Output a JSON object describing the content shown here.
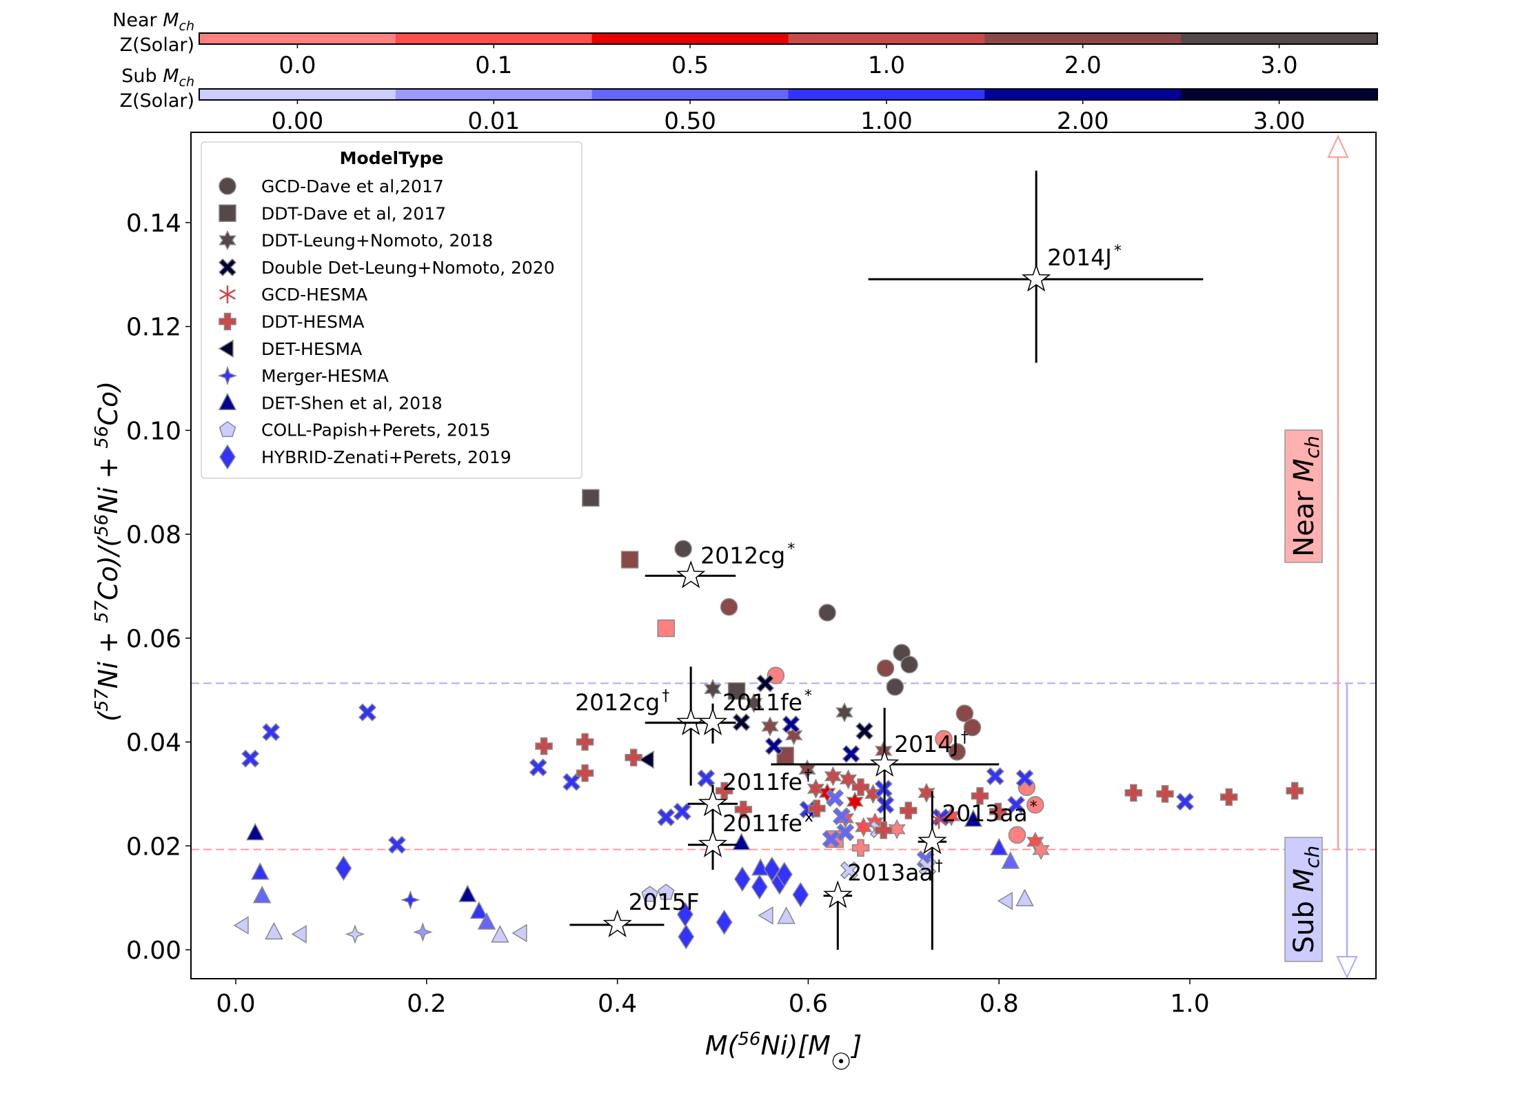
{
  "chart_data": {
    "type": "scatter",
    "title": "",
    "xlabel": "M(56Ni)[M☉]",
    "ylabel": "(57Ni + 57Co)/(56Ni + 56Co)",
    "xlim": [
      -0.04,
      1.2
    ],
    "ylim": [
      -0.0065,
      0.157
    ],
    "x_ticks": [
      "0.0",
      "0.2",
      "0.4",
      "0.6",
      "0.8",
      "1.0"
    ],
    "x_tick_values": [
      0.0,
      0.2,
      0.4,
      0.6,
      0.8,
      1.0
    ],
    "y_ticks": [
      "0.00",
      "0.02",
      "0.04",
      "0.06",
      "0.08",
      "0.10",
      "0.12",
      "0.14"
    ],
    "y_tick_values": [
      0.0,
      0.02,
      0.04,
      0.06,
      0.08,
      0.1,
      0.12,
      0.14
    ],
    "grid": false,
    "legend": {
      "title": "ModelType",
      "placement": "top-left",
      "entries": [
        {
          "label": "GCD-Dave et al,2017",
          "marker": "circle",
          "color": "#554848"
        },
        {
          "label": "DDT-Dave et al, 2017",
          "marker": "square",
          "color": "#554848"
        },
        {
          "label": "DDT-Leung+Nomoto, 2018",
          "marker": "star6",
          "color": "#554848"
        },
        {
          "label": "Double Det-Leung+Nomoto, 2020",
          "marker": "x",
          "color": "#000033"
        },
        {
          "label": "GCD-HESMA",
          "marker": "asterisk",
          "color": "#c84a4a"
        },
        {
          "label": "DDT-HESMA",
          "marker": "plus",
          "color": "#c84a4a"
        },
        {
          "label": "DET-HESMA",
          "marker": "tri-left",
          "color": "#000033"
        },
        {
          "label": "Merger-HESMA",
          "marker": "star4",
          "color": "#3333ff"
        },
        {
          "label": "DET-Shen et al, 2018",
          "marker": "tri-up",
          "color": "#000099"
        },
        {
          "label": "COLL-Papish+Perets, 2015",
          "marker": "pentagon",
          "color": "#ccccff"
        },
        {
          "label": "HYBRID-Zenati+Perets, 2019",
          "marker": "diamond",
          "color": "#3333ff"
        }
      ]
    },
    "colorbars": [
      {
        "label_line1": "Near M",
        "label_sub": "ch",
        "label_line2": "Z(Solar)",
        "ticks": [
          "0.0",
          "0.1",
          "0.5",
          "1.0",
          "2.0",
          "3.0"
        ],
        "colors": [
          "#ff8080",
          "#ff4c4c",
          "#e60000",
          "#c84a4a",
          "#8b4848",
          "#554848"
        ]
      },
      {
        "label_line1": "Sub M",
        "label_sub": "ch",
        "label_line2": "Z(Solar)",
        "ticks": [
          "0.00",
          "0.01",
          "0.50",
          "1.00",
          "2.00",
          "3.00"
        ],
        "colors": [
          "#ccccff",
          "#9999ff",
          "#6666ff",
          "#3333ff",
          "#000099",
          "#000033"
        ]
      }
    ],
    "thresholds": [
      {
        "name": "sub-mch-upper",
        "y": 0.0513,
        "color": "#aaaaff",
        "style": "dashed"
      },
      {
        "name": "near-mch-lower",
        "y": 0.0193,
        "color": "#ff9999",
        "style": "dashed"
      }
    ],
    "regions": [
      {
        "label": "Near M",
        "sub": "ch",
        "color": "#ffb0b0",
        "arrow": "up",
        "arrow_color": "#ff9999",
        "from_y": 0.0193
      },
      {
        "label": "Sub M",
        "sub": "ch",
        "color": "#ccccff",
        "arrow": "down",
        "arrow_color": "#aaaaff",
        "from_y": 0.0513
      }
    ],
    "series": [
      {
        "name": "GCD-Dave et al,2017",
        "marker": "circle",
        "points": [
          {
            "x": 0.469,
            "y": 0.0772,
            "c": "#554848"
          },
          {
            "x": 0.517,
            "y": 0.066,
            "c": "#8b4848"
          },
          {
            "x": 0.62,
            "y": 0.0649,
            "c": "#554848"
          },
          {
            "x": 0.566,
            "y": 0.0528,
            "c": "#ff8080"
          },
          {
            "x": 0.681,
            "y": 0.0542,
            "c": "#8b4848"
          },
          {
            "x": 0.698,
            "y": 0.0572,
            "c": "#554848"
          },
          {
            "x": 0.706,
            "y": 0.0549,
            "c": "#554848"
          },
          {
            "x": 0.691,
            "y": 0.0506,
            "c": "#554848"
          },
          {
            "x": 0.742,
            "y": 0.0406,
            "c": "#ff8080"
          },
          {
            "x": 0.764,
            "y": 0.0455,
            "c": "#8b4848"
          },
          {
            "x": 0.772,
            "y": 0.0428,
            "c": "#8b4848"
          },
          {
            "x": 0.756,
            "y": 0.0381,
            "c": "#8b4848"
          },
          {
            "x": 0.829,
            "y": 0.0313,
            "c": "#ff8080"
          },
          {
            "x": 0.838,
            "y": 0.0279,
            "c": "#ff8080"
          },
          {
            "x": 0.819,
            "y": 0.0221,
            "c": "#ff8080"
          }
        ]
      },
      {
        "name": "DDT-Dave et al, 2017",
        "marker": "square",
        "points": [
          {
            "x": 0.372,
            "y": 0.087,
            "c": "#554848"
          },
          {
            "x": 0.413,
            "y": 0.0751,
            "c": "#8b4848"
          },
          {
            "x": 0.451,
            "y": 0.0619,
            "c": "#ff8080"
          },
          {
            "x": 0.525,
            "y": 0.0498,
            "c": "#554848"
          },
          {
            "x": 0.576,
            "y": 0.0374,
            "c": "#8b4848"
          },
          {
            "x": 0.628,
            "y": 0.0213,
            "c": "#ff8080"
          }
        ]
      },
      {
        "name": "DDT-Leung+Nomoto, 2018",
        "marker": "star6",
        "points": [
          {
            "x": 0.5,
            "y": 0.0502,
            "c": "#554848"
          },
          {
            "x": 0.56,
            "y": 0.043,
            "c": "#8b4848"
          },
          {
            "x": 0.585,
            "y": 0.0413,
            "c": "#8b4848"
          },
          {
            "x": 0.543,
            "y": 0.0475,
            "c": "#554848"
          },
          {
            "x": 0.638,
            "y": 0.0457,
            "c": "#554848"
          },
          {
            "x": 0.599,
            "y": 0.0347,
            "c": "#8b4848"
          },
          {
            "x": 0.679,
            "y": 0.0383,
            "c": "#8b4848"
          },
          {
            "x": 0.608,
            "y": 0.031,
            "c": "#c84a4a"
          },
          {
            "x": 0.642,
            "y": 0.0328,
            "c": "#c84a4a"
          },
          {
            "x": 0.668,
            "y": 0.03,
            "c": "#c84a4a"
          },
          {
            "x": 0.724,
            "y": 0.0302,
            "c": "#c84a4a"
          },
          {
            "x": 0.626,
            "y": 0.0334,
            "c": "#c84a4a"
          },
          {
            "x": 0.62,
            "y": 0.0302,
            "c": "#e60000"
          },
          {
            "x": 0.649,
            "y": 0.0285,
            "c": "#e60000"
          },
          {
            "x": 0.639,
            "y": 0.0253,
            "c": "#ff4c4c"
          },
          {
            "x": 0.658,
            "y": 0.0236,
            "c": "#ff4c4c"
          },
          {
            "x": 0.67,
            "y": 0.0245,
            "c": "#ff4c4c"
          },
          {
            "x": 0.693,
            "y": 0.0232,
            "c": "#ff8080"
          },
          {
            "x": 0.75,
            "y": 0.0257,
            "c": "#ff4c4c"
          },
          {
            "x": 0.838,
            "y": 0.0208,
            "c": "#ff4c4c"
          },
          {
            "x": 0.844,
            "y": 0.0192,
            "c": "#ff8080"
          }
        ]
      },
      {
        "name": "Double Det-Leung+Nomoto, 2020",
        "marker": "x",
        "points": [
          {
            "x": 0.555,
            "y": 0.0513,
            "c": "#000033"
          },
          {
            "x": 0.53,
            "y": 0.0438,
            "c": "#000033"
          },
          {
            "x": 0.582,
            "y": 0.0434,
            "c": "#000099"
          },
          {
            "x": 0.564,
            "y": 0.0392,
            "c": "#000099"
          },
          {
            "x": 0.659,
            "y": 0.0421,
            "c": "#000033"
          },
          {
            "x": 0.645,
            "y": 0.0377,
            "c": "#000099"
          },
          {
            "x": 0.0153,
            "y": 0.0368,
            "c": "#3333ff"
          },
          {
            "x": 0.037,
            "y": 0.0419,
            "c": "#3333ff"
          },
          {
            "x": 0.138,
            "y": 0.0457,
            "c": "#3333ff"
          },
          {
            "x": 0.317,
            "y": 0.0351,
            "c": "#3333ff"
          },
          {
            "x": 0.352,
            "y": 0.0323,
            "c": "#3333ff"
          },
          {
            "x": 0.169,
            "y": 0.0202,
            "c": "#3333ff"
          },
          {
            "x": 0.451,
            "y": 0.0255,
            "c": "#3333ff"
          },
          {
            "x": 0.468,
            "y": 0.0266,
            "c": "#3333ff"
          },
          {
            "x": 0.493,
            "y": 0.033,
            "c": "#3333ff"
          },
          {
            "x": 0.6,
            "y": 0.027,
            "c": "#3333ff"
          },
          {
            "x": 0.679,
            "y": 0.031,
            "c": "#3333ff"
          },
          {
            "x": 0.681,
            "y": 0.0279,
            "c": "#3333ff"
          },
          {
            "x": 0.739,
            "y": 0.0255,
            "c": "#3333ff"
          },
          {
            "x": 0.796,
            "y": 0.0334,
            "c": "#3333ff"
          },
          {
            "x": 0.827,
            "y": 0.033,
            "c": "#3333ff"
          },
          {
            "x": 0.818,
            "y": 0.0279,
            "c": "#3333ff"
          },
          {
            "x": 0.995,
            "y": 0.0285,
            "c": "#3333ff"
          },
          {
            "x": 0.635,
            "y": 0.0257,
            "c": "#6666ff"
          },
          {
            "x": 0.628,
            "y": 0.0292,
            "c": "#6666ff"
          },
          {
            "x": 0.639,
            "y": 0.0226,
            "c": "#6666ff"
          },
          {
            "x": 0.624,
            "y": 0.0213,
            "c": "#6666ff"
          },
          {
            "x": 0.723,
            "y": 0.0174,
            "c": "#6666ff"
          },
          {
            "x": 0.643,
            "y": 0.0153,
            "c": "#ccccff"
          },
          {
            "x": 0.674,
            "y": 0.0232,
            "c": "#ccccff"
          },
          {
            "x": 0.725,
            "y": 0.016,
            "c": "#ccccff"
          }
        ]
      },
      {
        "name": "GCD-HESMA",
        "marker": "asterisk",
        "points": [
          {
            "x": 0.737,
            "y": 0.025,
            "c": "#c84a4a"
          }
        ]
      },
      {
        "name": "DDT-HESMA",
        "marker": "plus",
        "points": [
          {
            "x": 0.323,
            "y": 0.0392,
            "c": "#c84a4a"
          },
          {
            "x": 0.366,
            "y": 0.04,
            "c": "#c84a4a"
          },
          {
            "x": 0.366,
            "y": 0.034,
            "c": "#c84a4a"
          },
          {
            "x": 0.417,
            "y": 0.037,
            "c": "#c84a4a"
          },
          {
            "x": 0.532,
            "y": 0.027,
            "c": "#c84a4a"
          },
          {
            "x": 0.512,
            "y": 0.0306,
            "c": "#c84a4a"
          },
          {
            "x": 0.655,
            "y": 0.0313,
            "c": "#c84a4a"
          },
          {
            "x": 0.705,
            "y": 0.0268,
            "c": "#c84a4a"
          },
          {
            "x": 0.679,
            "y": 0.023,
            "c": "#c84a4a"
          },
          {
            "x": 0.78,
            "y": 0.0296,
            "c": "#c84a4a"
          },
          {
            "x": 0.799,
            "y": 0.0266,
            "c": "#c84a4a"
          },
          {
            "x": 0.941,
            "y": 0.0302,
            "c": "#c84a4a"
          },
          {
            "x": 0.974,
            "y": 0.03,
            "c": "#c84a4a"
          },
          {
            "x": 1.041,
            "y": 0.0294,
            "c": "#c84a4a"
          },
          {
            "x": 1.11,
            "y": 0.0306,
            "c": "#c84a4a"
          },
          {
            "x": 0.609,
            "y": 0.0272,
            "c": "#c84a4a"
          },
          {
            "x": 0.655,
            "y": 0.0196,
            "c": "#ff8080"
          }
        ]
      },
      {
        "name": "DET-HESMA",
        "marker": "tri-left",
        "points": [
          {
            "x": 0.432,
            "y": 0.0366,
            "c": "#000033"
          },
          {
            "x": 0.0072,
            "y": 0.0047,
            "c": "#ccccff"
          },
          {
            "x": 0.068,
            "y": 0.003,
            "c": "#ccccff"
          },
          {
            "x": 0.299,
            "y": 0.0032,
            "c": "#ccccff"
          },
          {
            "x": 0.557,
            "y": 0.0066,
            "c": "#ccccff"
          },
          {
            "x": 0.808,
            "y": 0.0094,
            "c": "#ccccff"
          }
        ]
      },
      {
        "name": "Merger-HESMA",
        "marker": "star4",
        "points": [
          {
            "x": 0.125,
            "y": 0.003,
            "c": "#ccccff"
          },
          {
            "x": 0.196,
            "y": 0.0034,
            "c": "#9999ff"
          },
          {
            "x": 0.183,
            "y": 0.0096,
            "c": "#3333ff"
          }
        ]
      },
      {
        "name": "DET-Shen et al, 2018",
        "marker": "tri-up",
        "points": [
          {
            "x": 0.0204,
            "y": 0.0225,
            "c": "#000099"
          },
          {
            "x": 0.0255,
            "y": 0.0149,
            "c": "#3333ff"
          },
          {
            "x": 0.0276,
            "y": 0.0104,
            "c": "#6666ff"
          },
          {
            "x": 0.04,
            "y": 0.0034,
            "c": "#ccccff"
          },
          {
            "x": 0.243,
            "y": 0.0106,
            "c": "#000099"
          },
          {
            "x": 0.255,
            "y": 0.0074,
            "c": "#3333ff"
          },
          {
            "x": 0.263,
            "y": 0.0053,
            "c": "#6666ff"
          },
          {
            "x": 0.277,
            "y": 0.0028,
            "c": "#ccccff"
          },
          {
            "x": 0.53,
            "y": 0.0206,
            "c": "#000099"
          },
          {
            "x": 0.55,
            "y": 0.0157,
            "c": "#3333ff"
          },
          {
            "x": 0.577,
            "y": 0.0064,
            "c": "#ccccff"
          },
          {
            "x": 0.8,
            "y": 0.0196,
            "c": "#3333ff"
          },
          {
            "x": 0.812,
            "y": 0.017,
            "c": "#6666ff"
          },
          {
            "x": 0.827,
            "y": 0.0098,
            "c": "#ccccff"
          },
          {
            "x": 0.773,
            "y": 0.0251,
            "c": "#000099"
          }
        ]
      },
      {
        "name": "COLL-Papish+Perets, 2015",
        "marker": "pentagon",
        "points": [
          {
            "x": 0.434,
            "y": 0.0106,
            "c": "#ccccff"
          },
          {
            "x": 0.451,
            "y": 0.011,
            "c": "#ccccff"
          }
        ]
      },
      {
        "name": "HYBRID-Zenati+Perets, 2019",
        "marker": "diamond",
        "points": [
          {
            "x": 0.113,
            "y": 0.0157,
            "c": "#3333ff"
          },
          {
            "x": 0.471,
            "y": 0.0068,
            "c": "#3333ff"
          },
          {
            "x": 0.512,
            "y": 0.0053,
            "c": "#3333ff"
          },
          {
            "x": 0.472,
            "y": 0.0025,
            "c": "#3333ff"
          },
          {
            "x": 0.531,
            "y": 0.0136,
            "c": "#3333ff"
          },
          {
            "x": 0.549,
            "y": 0.0121,
            "c": "#3333ff"
          },
          {
            "x": 0.562,
            "y": 0.0155,
            "c": "#3333ff"
          },
          {
            "x": 0.57,
            "y": 0.013,
            "c": "#3333ff"
          },
          {
            "x": 0.575,
            "y": 0.0145,
            "c": "#3333ff"
          },
          {
            "x": 0.592,
            "y": 0.0106,
            "c": "#3333ff"
          }
        ]
      }
    ],
    "observations": [
      {
        "name": "2014J",
        "sup": "*",
        "x": 0.839,
        "y": 0.1291,
        "xerr": [
          0.663,
          1.014
        ],
        "yerr": [
          0.113,
          0.15
        ]
      },
      {
        "name": "2012cg",
        "sup": "*",
        "x": 0.477,
        "y": 0.072,
        "xerr": [
          0.429,
          0.524
        ],
        "yerr": null
      },
      {
        "name": "2012cg",
        "sup": "†",
        "x": 0.477,
        "y": 0.0437,
        "xerr": [
          0.429,
          0.524
        ],
        "yerr": [
          0.0316,
          0.0545
        ]
      },
      {
        "name": "2011fe",
        "sup": "*",
        "x": 0.5,
        "y": 0.0437,
        "xerr": [
          0.43,
          0.524
        ],
        "yerr": [
          0.0397,
          0.0474
        ]
      },
      {
        "name": "2014J",
        "sup": "†",
        "x": 0.68,
        "y": 0.0357,
        "xerr": [
          0.561,
          0.8
        ],
        "yerr": [
          0.0247,
          0.0466
        ]
      },
      {
        "name": "2011fe",
        "sup": "†",
        "x": 0.5,
        "y": 0.0281,
        "xerr": [
          0.474,
          0.526
        ],
        "yerr": [
          0.0246,
          0.0317
        ]
      },
      {
        "name": "2011fe",
        "sup": "x",
        "x": 0.5,
        "y": 0.0202,
        "xerr": [
          0.474,
          0.526
        ],
        "yerr": [
          0.0154,
          0.0246
        ]
      },
      {
        "name": "2013aa",
        "sup": "*",
        "x": 0.73,
        "y": 0.0208,
        "xerr": [
          0.715,
          0.745
        ],
        "yerr": [
          0.0,
          0.0305
        ]
      },
      {
        "name": "2013aa",
        "sup": "†",
        "x": 0.631,
        "y": 0.0104,
        "xerr": [
          0.616,
          0.646
        ],
        "yerr": [
          0.0,
          0.0104
        ]
      },
      {
        "name": "2015F",
        "sup": "",
        "x": 0.4,
        "y": 0.0048,
        "xerr": [
          0.35,
          0.449
        ],
        "yerr": null
      }
    ]
  }
}
